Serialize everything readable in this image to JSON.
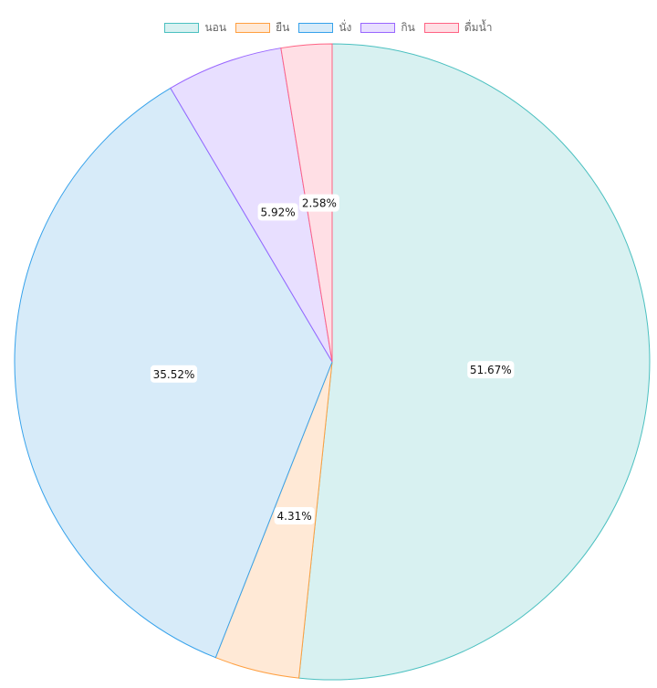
{
  "chart_data": {
    "type": "pie",
    "categories": [
      "นอน",
      "ยืน",
      "นั่ง",
      "กิน",
      "ดื่มน้ำ"
    ],
    "values": [
      51.67,
      4.31,
      35.52,
      5.92,
      2.58
    ],
    "labels": [
      "51.67%",
      "4.31%",
      "35.52%",
      "5.92%",
      "2.58%"
    ],
    "title": "",
    "legend_position": "top",
    "colors": {
      "fill": [
        "#d8f1f1",
        "#ffe9d6",
        "#d7ebf9",
        "#e8dfff",
        "#ffdfe5"
      ],
      "border": [
        "#4bc0c0",
        "#ff9f40",
        "#36a2eb",
        "#9966ff",
        "#ff6384"
      ]
    }
  }
}
